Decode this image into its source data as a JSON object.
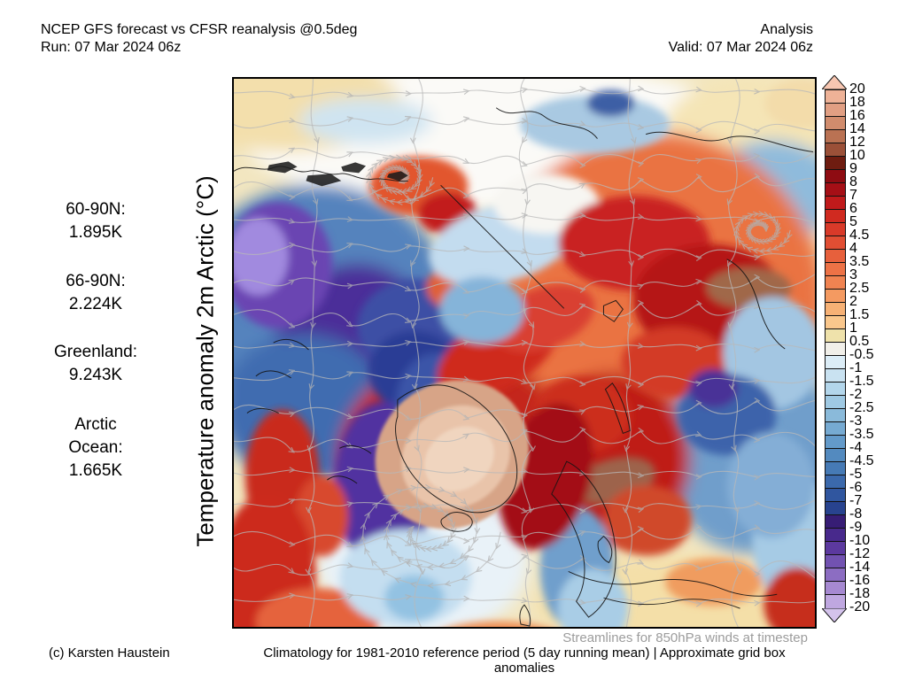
{
  "header": {
    "title_left_line1": "NCEP GFS forecast vs CFSR reanalysis @0.5deg",
    "title_left_line2": "Run: 07 Mar 2024 06z",
    "title_right_line1": "Analysis",
    "title_right_line2": "Valid: 07 Mar 2024 06z"
  },
  "left_panel": {
    "vertical_title": "Temperature anomaly 2m Arctic (°C)",
    "stats": [
      {
        "label": "60-90N:",
        "value": "1.895K"
      },
      {
        "label": "66-90N:",
        "value": "2.224K"
      },
      {
        "label": "Greenland:",
        "value": "9.243K"
      },
      {
        "label": "Arctic Ocean:",
        "value": "1.665K"
      }
    ]
  },
  "map": {
    "note": "Streamlines for 850hPa winds at timestep"
  },
  "footer": {
    "credit": "(c) Karsten Haustein",
    "climatology": "Climatology for 1981-2010 reference period (5 day running mean) | Approximate grid box anomalies"
  },
  "colorbar": {
    "tick_labels": [
      "20",
      "18",
      "16",
      "14",
      "12",
      "10",
      "9",
      "8",
      "7",
      "6",
      "5",
      "4.5",
      "4",
      "3.5",
      "3",
      "2.5",
      "2",
      "1.5",
      "1",
      "0.5",
      "-0.5",
      "-1",
      "-1.5",
      "-2",
      "-2.5",
      "-3",
      "-3.5",
      "-4",
      "-4.5",
      "-5",
      "-6",
      "-7",
      "-8",
      "-9",
      "-10",
      "-12",
      "-14",
      "-16",
      "-18",
      "-20"
    ],
    "cell_colors": [
      "#eeb297",
      "#e19f83",
      "#d18c6d",
      "#ba7253",
      "#9b5038",
      "#6e1c10",
      "#8e0c12",
      "#a50f16",
      "#c01a1b",
      "#d02a20",
      "#d93a29",
      "#e14e33",
      "#e7603c",
      "#ed7246",
      "#f08351",
      "#f49a61",
      "#f7b175",
      "#fac78c",
      "#efe2ab",
      "#f1efe9",
      "#dcedf7",
      "#c9e2f1",
      "#b3d6eb",
      "#9fc9e3",
      "#8abada",
      "#76aad2",
      "#639aca",
      "#538abf",
      "#467ab5",
      "#3b69ac",
      "#30569f",
      "#28438f",
      "#371d75",
      "#48298c",
      "#5c399f",
      "#7252b1",
      "#8c6dc2",
      "#a689d1",
      "#bfa7e0"
    ],
    "arrow_top_color": "#f7c6b1",
    "arrow_bottom_color": "#d4c3ec"
  },
  "chart_data": {
    "type": "heatmap",
    "title": "Temperature anomaly 2m Arctic (°C)",
    "model": "NCEP GFS forecast vs CFSR reanalysis @0.5deg",
    "run": "07 Mar 2024 06z",
    "step": "Analysis",
    "valid": "07 Mar 2024 06z",
    "units": "°C anomaly (region means in K)",
    "colorbar_ticks": [
      20,
      18,
      16,
      14,
      12,
      10,
      9,
      8,
      7,
      6,
      5,
      4.5,
      4,
      3.5,
      3,
      2.5,
      2,
      1.5,
      1,
      0.5,
      -0.5,
      -1,
      -1.5,
      -2,
      -2.5,
      -3,
      -3.5,
      -4,
      -4.5,
      -5,
      -6,
      -7,
      -8,
      -9,
      -10,
      -12,
      -14,
      -16,
      -18,
      -20
    ],
    "region_means": {
      "60-90N": 1.895,
      "66-90N": 2.224,
      "Greenland": 9.243,
      "Arctic Ocean": 1.665
    },
    "overlay": "Streamlines for 850hPa winds at timestep",
    "reference": "Climatology for 1981-2010 reference period (5 day running mean) | Approximate grid box anomalies"
  }
}
